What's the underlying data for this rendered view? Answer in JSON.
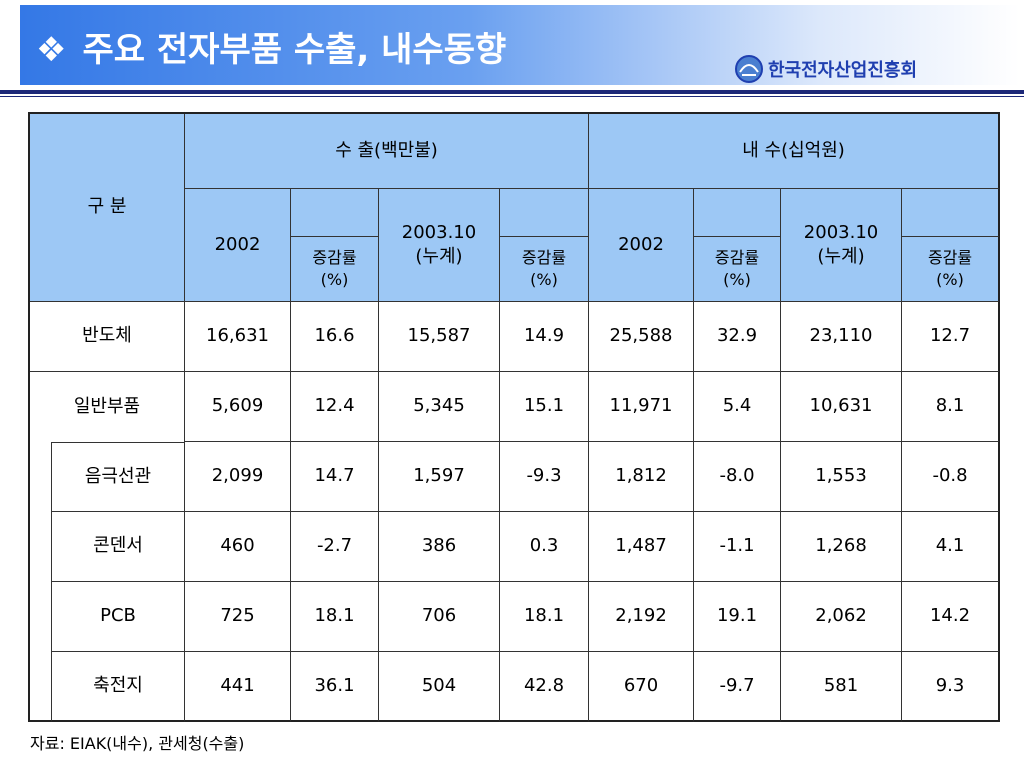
{
  "header": {
    "bullet": "❖",
    "title": "주요 전자부품 수출, 내수동향",
    "logo": "한국전자산업진흥회"
  },
  "table": {
    "category": "구  분",
    "export": "수      출(백만불)",
    "domestic": "내      수(십억원)",
    "export_columns": [
      "2002",
      "증감률\n(%)",
      "2003.10\n(누계)",
      "증감률\n(%)"
    ],
    "domestic_columns": [
      "2002",
      "증감률\n(%)",
      "2003.10\n(누계)",
      "증감률\n(%)"
    ],
    "rows": [
      {
        "label": "반도체",
        "values": [
          "16,631",
          "16.6",
          "15,587",
          "14.9",
          "25,588",
          "32.9",
          "23,110",
          "12.7"
        ]
      },
      {
        "label": "일반부품",
        "values": [
          "5,609",
          "12.4",
          "5,345",
          "15.1",
          "11,971",
          "5.4",
          "10,631",
          "8.1"
        ],
        "children": [
          {
            "label": "음극선관",
            "values": [
              "2,099",
              "14.7",
              "1,597",
              "-9.3",
              "1,812",
              "-8.0",
              "1,553",
              "-0.8"
            ]
          },
          {
            "label": "콘덴서",
            "values": [
              "460",
              "-2.7",
              "386",
              "0.3",
              "1,487",
              "-1.1",
              "1,268",
              "4.1"
            ]
          },
          {
            "label": "PCB",
            "values": [
              "725",
              "18.1",
              "706",
              "18.1",
              "2,192",
              "19.1",
              "2,062",
              "14.2"
            ]
          },
          {
            "label": "축전지",
            "values": [
              "441",
              "36.1",
              "504",
              "42.8",
              "670",
              "-9.7",
              "581",
              "9.3"
            ]
          }
        ]
      }
    ]
  },
  "source": "자료: EIAK(내수), 관세청(수출)"
}
